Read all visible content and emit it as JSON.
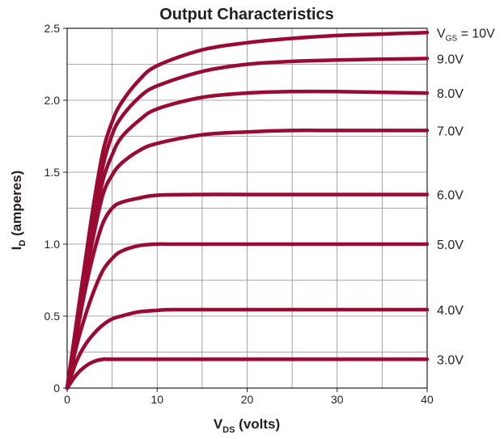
{
  "chart_data": {
    "type": "line",
    "title": "Output Characteristics",
    "xlabel": {
      "main": "V",
      "sub": "DS",
      "rest": " (volts)"
    },
    "ylabel": {
      "main": "I",
      "sub": "D",
      "rest": " (amperes)"
    },
    "xlim": [
      0,
      40
    ],
    "ylim": [
      0,
      2.5
    ],
    "xticks": [
      0,
      10,
      20,
      30,
      40
    ],
    "xtick_labels": [
      "0",
      "10",
      "20",
      "30",
      "40"
    ],
    "yticks": [
      0,
      0.5,
      1.0,
      1.5,
      2.0,
      2.5
    ],
    "ytick_labels": [
      "0",
      "0.5",
      "1.0",
      "1.5",
      "2.0",
      "2.5"
    ],
    "grid": true,
    "line_color": "#9b0a33",
    "series": [
      {
        "name": "3.0V",
        "prefix": "",
        "x": [
          0,
          1,
          2,
          3,
          4,
          5,
          10,
          20,
          30,
          40
        ],
        "y": [
          0,
          0.09,
          0.15,
          0.185,
          0.2,
          0.2,
          0.2,
          0.2,
          0.2,
          0.2
        ]
      },
      {
        "name": "4.0V",
        "prefix": "",
        "x": [
          0,
          1,
          2,
          3,
          4,
          5,
          6,
          8,
          10,
          12,
          20,
          30,
          40
        ],
        "y": [
          0,
          0.18,
          0.3,
          0.38,
          0.44,
          0.48,
          0.5,
          0.53,
          0.54,
          0.545,
          0.545,
          0.545,
          0.545
        ]
      },
      {
        "name": "5.0V",
        "prefix": "",
        "x": [
          0,
          1,
          2,
          3,
          4,
          5,
          6,
          8,
          10,
          12,
          20,
          30,
          40
        ],
        "y": [
          0,
          0.28,
          0.5,
          0.68,
          0.82,
          0.9,
          0.95,
          0.99,
          1.0,
          1.0,
          1.0,
          1.0,
          1.0
        ]
      },
      {
        "name": "6.0V",
        "prefix": "",
        "x": [
          0,
          1,
          2,
          3,
          4,
          5,
          6,
          8,
          10,
          15,
          20,
          30,
          40
        ],
        "y": [
          0,
          0.35,
          0.68,
          0.95,
          1.15,
          1.25,
          1.29,
          1.32,
          1.34,
          1.345,
          1.345,
          1.345,
          1.345
        ]
      },
      {
        "name": "7.0V",
        "prefix": "",
        "x": [
          0,
          1,
          2,
          3,
          4,
          5,
          6,
          8,
          10,
          15,
          20,
          25,
          30,
          40
        ],
        "y": [
          0,
          0.38,
          0.76,
          1.08,
          1.35,
          1.48,
          1.56,
          1.65,
          1.7,
          1.76,
          1.78,
          1.79,
          1.79,
          1.79
        ]
      },
      {
        "name": "8.0V",
        "prefix": "",
        "x": [
          0,
          1,
          2,
          3,
          4,
          5,
          6,
          8,
          10,
          15,
          20,
          25,
          30,
          40
        ],
        "y": [
          0,
          0.4,
          0.8,
          1.15,
          1.45,
          1.62,
          1.74,
          1.86,
          1.94,
          2.02,
          2.05,
          2.06,
          2.06,
          2.05
        ]
      },
      {
        "name": "9.0V",
        "prefix": "",
        "x": [
          0,
          1,
          2,
          3,
          4,
          5,
          6,
          8,
          10,
          15,
          20,
          25,
          30,
          40
        ],
        "y": [
          0,
          0.42,
          0.84,
          1.22,
          1.55,
          1.76,
          1.88,
          2.02,
          2.1,
          2.2,
          2.25,
          2.27,
          2.28,
          2.29
        ]
      },
      {
        "name": "10V",
        "prefix": "V_GS = ",
        "x": [
          0,
          1,
          2,
          3,
          4,
          5,
          6,
          8,
          10,
          15,
          20,
          25,
          30,
          35,
          40
        ],
        "y": [
          0,
          0.44,
          0.88,
          1.3,
          1.65,
          1.85,
          1.98,
          2.14,
          2.24,
          2.35,
          2.4,
          2.43,
          2.45,
          2.46,
          2.47
        ]
      }
    ]
  }
}
